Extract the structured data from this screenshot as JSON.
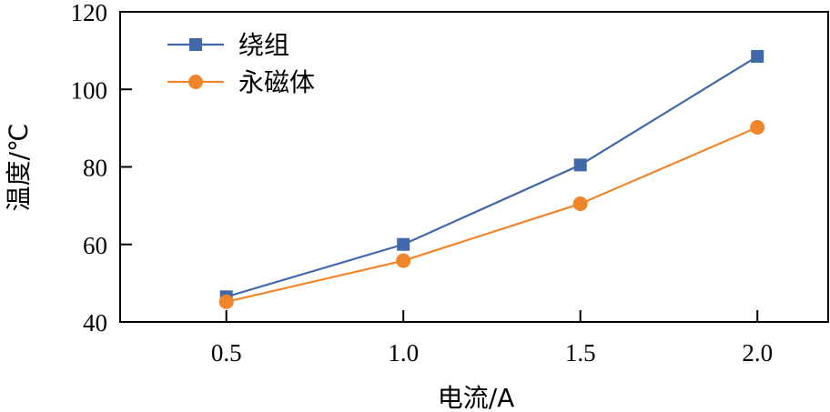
{
  "chart_data": {
    "type": "line",
    "title": "",
    "xlabel": "电流/A",
    "ylabel": "温度/℃",
    "x": [
      0.5,
      1.0,
      1.5,
      2.0
    ],
    "x_tick_labels": [
      "0.5",
      "1.0",
      "1.5",
      "2.0"
    ],
    "y_tick_labels": [
      "40",
      "60",
      "80",
      "100",
      "120"
    ],
    "xlim": [
      0.2,
      2.2
    ],
    "ylim": [
      40,
      120
    ],
    "grid": false,
    "legend_position": "upper left",
    "series": [
      {
        "name": "绕组",
        "marker": "square",
        "color": "#4169AA",
        "values": [
          46.5,
          60.0,
          80.5,
          108.5
        ]
      },
      {
        "name": "永磁体",
        "marker": "circle",
        "color": "#F0862A",
        "values": [
          45.2,
          55.8,
          70.5,
          90.2
        ]
      }
    ]
  },
  "legend": {
    "items": [
      {
        "label": "绕组"
      },
      {
        "label": "永磁体"
      }
    ]
  },
  "axes": {
    "xlabel": "电流/A",
    "ylabel": "温度/℃"
  }
}
